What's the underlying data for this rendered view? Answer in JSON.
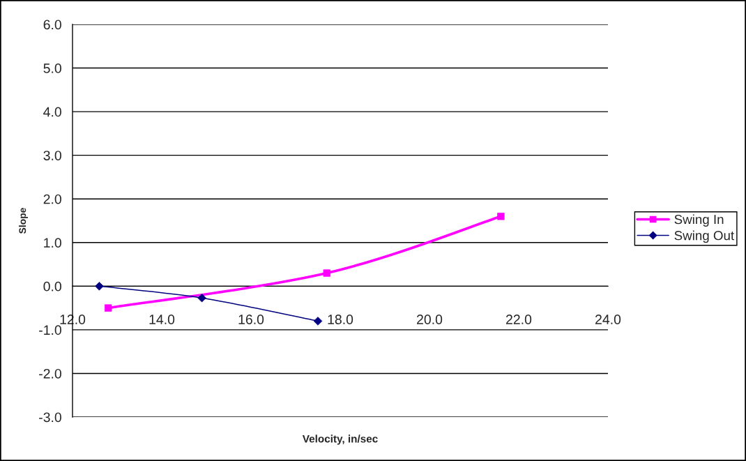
{
  "chart_data": {
    "type": "line",
    "xlabel": "Velocity, in/sec",
    "ylabel": "Slope",
    "series": [
      {
        "name": "Swing In",
        "color": "#ff00ff",
        "marker": "square",
        "x": [
          12.8,
          17.7,
          21.6
        ],
        "values": [
          -0.5,
          0.3,
          1.6
        ]
      },
      {
        "name": "Swing Out",
        "color": "#000080",
        "marker": "diamond",
        "x": [
          12.6,
          14.9,
          17.5
        ],
        "values": [
          0.0,
          -0.27,
          -0.8
        ]
      }
    ],
    "xlim": [
      12,
      24
    ],
    "xticks": [
      {
        "value": 12,
        "label": "12.0"
      },
      {
        "value": 14,
        "label": "14.0"
      },
      {
        "value": 16,
        "label": "16.0"
      },
      {
        "value": 18,
        "label": "18.0"
      },
      {
        "value": 20,
        "label": "20.0"
      },
      {
        "value": 22,
        "label": "22.0"
      },
      {
        "value": 24,
        "label": "24.0"
      }
    ],
    "ylim": [
      -3,
      6
    ],
    "yticks": [
      {
        "value": -3,
        "label": "-3.0"
      },
      {
        "value": -2,
        "label": "-2.0"
      },
      {
        "value": -1,
        "label": "-1.0"
      },
      {
        "value": 0,
        "label": "0.0"
      },
      {
        "value": 1,
        "label": "1.0"
      },
      {
        "value": 2,
        "label": "2.0"
      },
      {
        "value": 3,
        "label": "3.0"
      },
      {
        "value": 4,
        "label": "4.0"
      },
      {
        "value": 5,
        "label": "5.0"
      },
      {
        "value": 6,
        "label": "6.0"
      }
    ],
    "grid": "y",
    "legend": "right"
  }
}
